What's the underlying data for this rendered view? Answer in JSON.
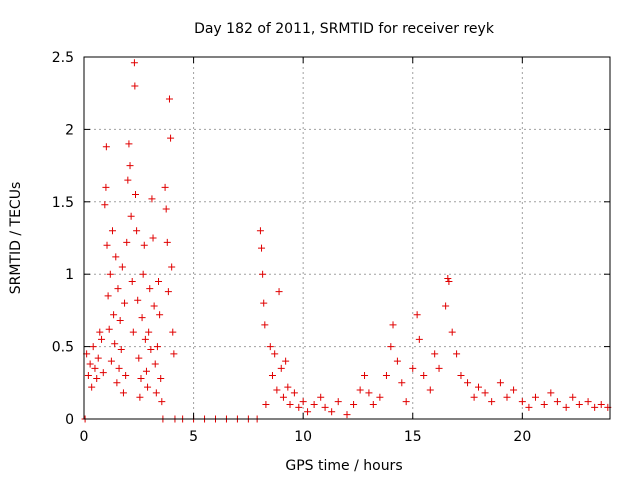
{
  "chart_data": {
    "type": "scatter",
    "title": "Day 182 of 2011, SRMTID for receiver reyk",
    "xlabel": "GPS time / hours",
    "ylabel": "SRMTID / TECUs",
    "xlim": [
      0,
      24
    ],
    "ylim": [
      0,
      2.5
    ],
    "xticks": [
      "0",
      "5",
      "10",
      "15",
      "20"
    ],
    "xtick_values": [
      0,
      5,
      10,
      15,
      20
    ],
    "yticks": [
      "0",
      "0.5",
      "1",
      "1.5",
      "2",
      "2.5"
    ],
    "ytick_values": [
      0,
      0.5,
      1,
      1.5,
      2,
      2.5
    ],
    "grid": true,
    "marker": "plus",
    "color": "#e00000",
    "series": [
      {
        "points": [
          [
            0.05,
            0.0
          ],
          [
            0.12,
            0.45
          ],
          [
            0.2,
            0.3
          ],
          [
            0.28,
            0.38
          ],
          [
            0.35,
            0.22
          ],
          [
            0.42,
            0.5
          ],
          [
            0.5,
            0.35
          ],
          [
            0.58,
            0.28
          ],
          [
            0.65,
            0.42
          ],
          [
            0.72,
            0.6
          ],
          [
            0.8,
            0.55
          ],
          [
            0.88,
            0.32
          ],
          [
            0.95,
            1.48
          ],
          [
            1.0,
            1.6
          ],
          [
            1.02,
            1.88
          ],
          [
            1.05,
            1.2
          ],
          [
            1.1,
            0.85
          ],
          [
            1.15,
            0.62
          ],
          [
            1.2,
            1.0
          ],
          [
            1.25,
            0.4
          ],
          [
            1.3,
            1.3
          ],
          [
            1.35,
            0.72
          ],
          [
            1.4,
            0.52
          ],
          [
            1.45,
            1.12
          ],
          [
            1.5,
            0.25
          ],
          [
            1.55,
            0.9
          ],
          [
            1.6,
            0.35
          ],
          [
            1.65,
            0.68
          ],
          [
            1.7,
            0.48
          ],
          [
            1.75,
            1.05
          ],
          [
            1.8,
            0.18
          ],
          [
            1.85,
            0.8
          ],
          [
            1.9,
            0.3
          ],
          [
            1.95,
            1.22
          ],
          [
            2.0,
            1.65
          ],
          [
            2.05,
            1.9
          ],
          [
            2.1,
            1.75
          ],
          [
            2.15,
            1.4
          ],
          [
            2.2,
            0.95
          ],
          [
            2.25,
            0.6
          ],
          [
            2.3,
            2.46
          ],
          [
            2.32,
            2.3
          ],
          [
            2.35,
            1.55
          ],
          [
            2.4,
            1.3
          ],
          [
            2.45,
            0.82
          ],
          [
            2.5,
            0.42
          ],
          [
            2.55,
            0.15
          ],
          [
            2.6,
            0.28
          ],
          [
            2.65,
            0.7
          ],
          [
            2.7,
            1.0
          ],
          [
            2.75,
            1.2
          ],
          [
            2.8,
            0.55
          ],
          [
            2.85,
            0.33
          ],
          [
            2.9,
            0.22
          ],
          [
            2.95,
            0.6
          ],
          [
            3.0,
            0.9
          ],
          [
            3.05,
            0.48
          ],
          [
            3.1,
            1.52
          ],
          [
            3.15,
            1.25
          ],
          [
            3.2,
            0.78
          ],
          [
            3.25,
            0.38
          ],
          [
            3.3,
            0.18
          ],
          [
            3.35,
            0.5
          ],
          [
            3.4,
            0.95
          ],
          [
            3.45,
            0.72
          ],
          [
            3.5,
            0.28
          ],
          [
            3.55,
            0.12
          ],
          [
            3.6,
            0.0
          ],
          [
            3.7,
            1.6
          ],
          [
            3.75,
            1.45
          ],
          [
            3.8,
            1.22
          ],
          [
            3.85,
            0.88
          ],
          [
            3.9,
            2.21
          ],
          [
            3.95,
            1.94
          ],
          [
            4.0,
            1.05
          ],
          [
            4.05,
            0.6
          ],
          [
            4.1,
            0.45
          ],
          [
            4.15,
            0.0
          ],
          [
            4.5,
            0.0
          ],
          [
            5.0,
            0.0
          ],
          [
            5.5,
            0.0
          ],
          [
            6.0,
            0.0
          ],
          [
            6.5,
            0.0
          ],
          [
            7.0,
            0.0
          ],
          [
            7.5,
            0.0
          ],
          [
            7.9,
            0.0
          ],
          [
            8.05,
            1.3
          ],
          [
            8.1,
            1.18
          ],
          [
            8.15,
            1.0
          ],
          [
            8.2,
            0.8
          ],
          [
            8.25,
            0.65
          ],
          [
            8.3,
            0.1
          ],
          [
            8.5,
            0.5
          ],
          [
            8.6,
            0.3
          ],
          [
            8.7,
            0.45
          ],
          [
            8.8,
            0.2
          ],
          [
            8.9,
            0.88
          ],
          [
            9.0,
            0.35
          ],
          [
            9.1,
            0.15
          ],
          [
            9.2,
            0.4
          ],
          [
            9.3,
            0.22
          ],
          [
            9.4,
            0.1
          ],
          [
            9.6,
            0.18
          ],
          [
            9.8,
            0.08
          ],
          [
            10.0,
            0.12
          ],
          [
            10.2,
            0.05
          ],
          [
            10.5,
            0.1
          ],
          [
            10.8,
            0.15
          ],
          [
            11.0,
            0.08
          ],
          [
            11.3,
            0.05
          ],
          [
            11.6,
            0.12
          ],
          [
            12.0,
            0.03
          ],
          [
            12.3,
            0.1
          ],
          [
            12.6,
            0.2
          ],
          [
            12.8,
            0.3
          ],
          [
            13.0,
            0.18
          ],
          [
            13.2,
            0.1
          ],
          [
            13.5,
            0.15
          ],
          [
            13.8,
            0.3
          ],
          [
            14.0,
            0.5
          ],
          [
            14.1,
            0.65
          ],
          [
            14.3,
            0.4
          ],
          [
            14.5,
            0.25
          ],
          [
            14.7,
            0.12
          ],
          [
            15.0,
            0.35
          ],
          [
            15.2,
            0.72
          ],
          [
            15.3,
            0.55
          ],
          [
            15.5,
            0.3
          ],
          [
            15.8,
            0.2
          ],
          [
            16.0,
            0.45
          ],
          [
            16.2,
            0.35
          ],
          [
            16.5,
            0.78
          ],
          [
            16.6,
            0.97
          ],
          [
            16.65,
            0.95
          ],
          [
            16.8,
            0.6
          ],
          [
            17.0,
            0.45
          ],
          [
            17.2,
            0.3
          ],
          [
            17.5,
            0.25
          ],
          [
            17.8,
            0.15
          ],
          [
            18.0,
            0.22
          ],
          [
            18.3,
            0.18
          ],
          [
            18.6,
            0.12
          ],
          [
            19.0,
            0.25
          ],
          [
            19.3,
            0.15
          ],
          [
            19.6,
            0.2
          ],
          [
            20.0,
            0.12
          ],
          [
            20.3,
            0.08
          ],
          [
            20.6,
            0.15
          ],
          [
            21.0,
            0.1
          ],
          [
            21.3,
            0.18
          ],
          [
            21.6,
            0.12
          ],
          [
            22.0,
            0.08
          ],
          [
            22.3,
            0.15
          ],
          [
            22.6,
            0.1
          ],
          [
            23.0,
            0.12
          ],
          [
            23.3,
            0.08
          ],
          [
            23.6,
            0.1
          ],
          [
            23.9,
            0.08
          ]
        ]
      }
    ]
  }
}
